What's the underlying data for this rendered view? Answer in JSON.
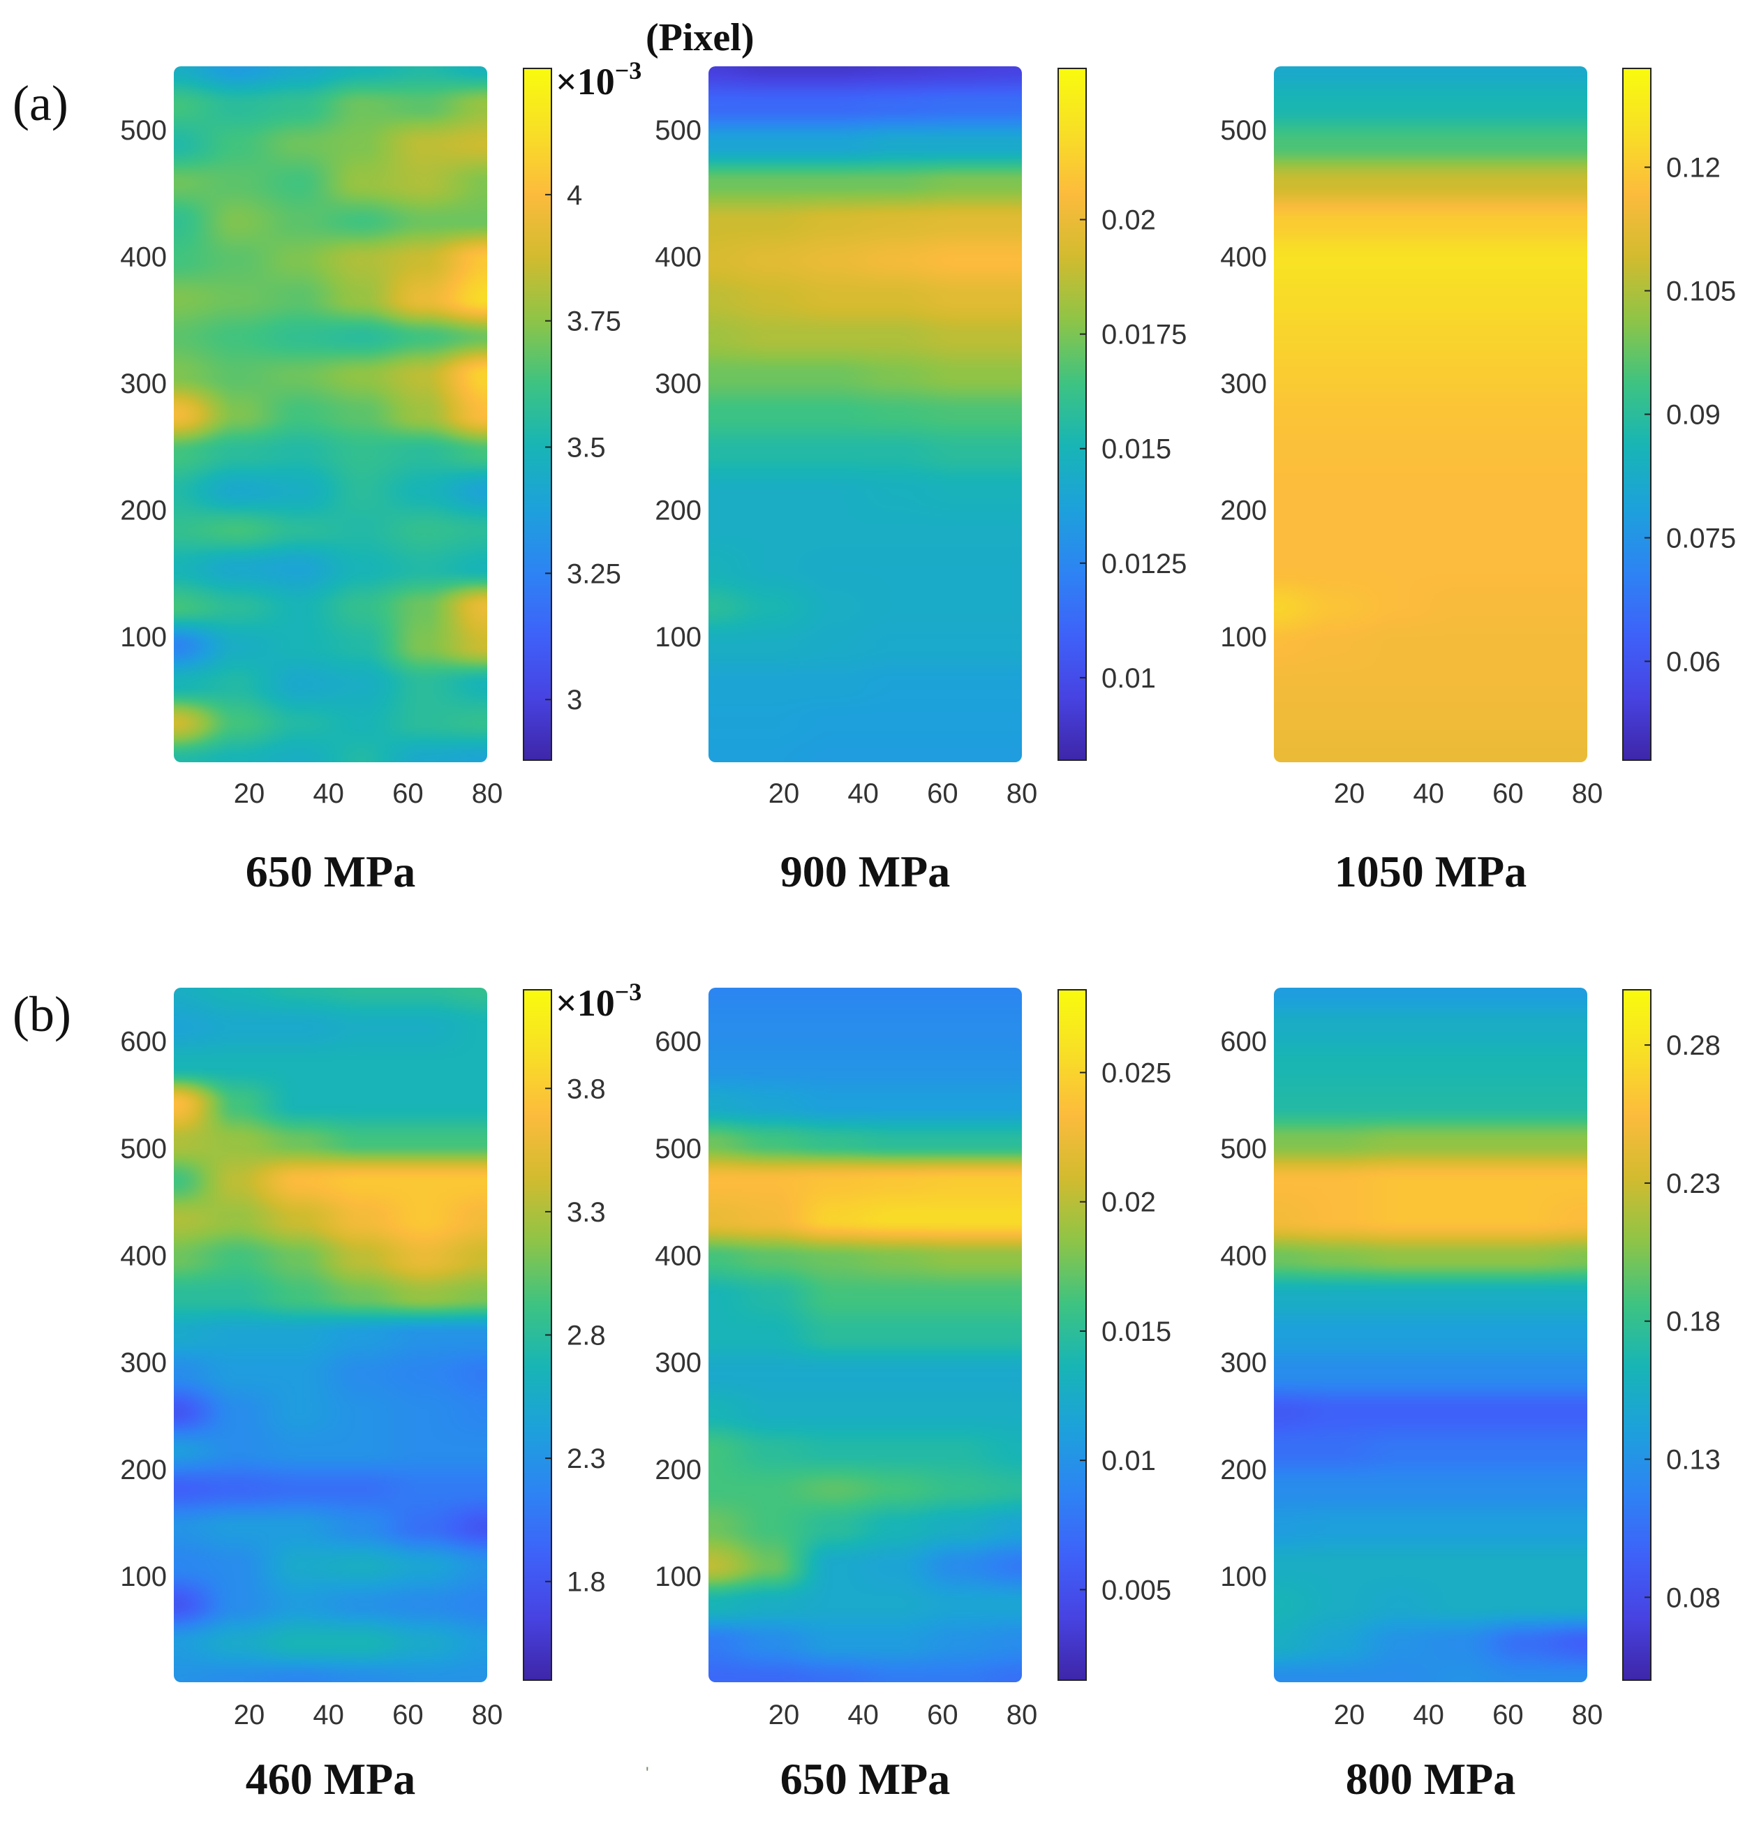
{
  "figure": {
    "unit_label": "(Pixel)",
    "stray_mark": "'"
  },
  "colormap": [
    "#3e26a8",
    "#4743e2",
    "#3e62f9",
    "#2d84f3",
    "#1da1db",
    "#18b5b5",
    "#3ec381",
    "#8ec447",
    "#d2bb2f",
    "#fcbb3d",
    "#f8df26",
    "#f9fb0e"
  ],
  "chart_data": [
    {
      "type": "heatmap",
      "row": "a",
      "panel_tag": "(a)",
      "title": "650 MPa",
      "ylim": [
        1,
        550
      ],
      "yticks": [
        "500",
        "400",
        "300",
        "200",
        "100"
      ],
      "ytick_values": [
        500,
        400,
        300,
        200,
        100
      ],
      "xlim": [
        1,
        80
      ],
      "xticks": [
        "20",
        "40",
        "60",
        "80"
      ],
      "xtick_values": [
        20,
        40,
        60,
        80
      ],
      "clim": [
        0.00288,
        0.00425
      ],
      "cbar_multiplier": "×10",
      "cbar_exponent": "−3",
      "cbar_ticks": [
        "4",
        "3.75",
        "3.5",
        "3.25",
        "3"
      ],
      "cbar_tick_values": [
        0.004,
        0.00375,
        0.0035,
        0.00325,
        0.003
      ],
      "z": [
        [
          0.42,
          0.35,
          0.4,
          0.45,
          0.48,
          0.44
        ],
        [
          0.55,
          0.5,
          0.52,
          0.6,
          0.58,
          0.65
        ],
        [
          0.48,
          0.55,
          0.6,
          0.62,
          0.7,
          0.72
        ],
        [
          0.6,
          0.58,
          0.55,
          0.65,
          0.68,
          0.62
        ],
        [
          0.52,
          0.62,
          0.58,
          0.55,
          0.6,
          0.6
        ],
        [
          0.55,
          0.58,
          0.62,
          0.68,
          0.72,
          0.85
        ],
        [
          0.62,
          0.6,
          0.58,
          0.65,
          0.78,
          0.9
        ],
        [
          0.58,
          0.55,
          0.52,
          0.5,
          0.55,
          0.6
        ],
        [
          0.62,
          0.58,
          0.6,
          0.64,
          0.7,
          0.88
        ],
        [
          0.8,
          0.62,
          0.55,
          0.58,
          0.66,
          0.82
        ],
        [
          0.55,
          0.5,
          0.48,
          0.52,
          0.5,
          0.55
        ],
        [
          0.48,
          0.4,
          0.42,
          0.5,
          0.45,
          0.38
        ],
        [
          0.52,
          0.55,
          0.5,
          0.48,
          0.52,
          0.5
        ],
        [
          0.45,
          0.4,
          0.38,
          0.45,
          0.48,
          0.45
        ],
        [
          0.55,
          0.5,
          0.45,
          0.52,
          0.6,
          0.78
        ],
        [
          0.28,
          0.42,
          0.45,
          0.48,
          0.62,
          0.72
        ],
        [
          0.45,
          0.48,
          0.4,
          0.42,
          0.5,
          0.45
        ],
        [
          0.72,
          0.55,
          0.48,
          0.45,
          0.5,
          0.52
        ],
        [
          0.48,
          0.45,
          0.42,
          0.48,
          0.4,
          0.38
        ]
      ]
    },
    {
      "type": "heatmap",
      "row": "a",
      "title": "900 MPa",
      "ylim": [
        1,
        550
      ],
      "yticks": [
        "500",
        "400",
        "300",
        "200",
        "100"
      ],
      "ytick_values": [
        500,
        400,
        300,
        200,
        100
      ],
      "xlim": [
        1,
        80
      ],
      "xticks": [
        "20",
        "40",
        "60",
        "80"
      ],
      "xtick_values": [
        20,
        40,
        60,
        80
      ],
      "clim": [
        0.0082,
        0.0233
      ],
      "cbar_ticks": [
        "0.02",
        "0.0175",
        "0.015",
        "0.0125",
        "0.01"
      ],
      "cbar_tick_values": [
        0.02,
        0.0175,
        0.015,
        0.0125,
        0.01
      ],
      "z": [
        [
          0.08,
          0.06,
          0.06,
          0.07,
          0.08,
          0.09
        ],
        [
          0.2,
          0.2,
          0.2,
          0.21,
          0.22,
          0.22
        ],
        [
          0.38,
          0.38,
          0.38,
          0.4,
          0.4,
          0.4
        ],
        [
          0.6,
          0.6,
          0.6,
          0.6,
          0.62,
          0.62
        ],
        [
          0.72,
          0.72,
          0.74,
          0.75,
          0.76,
          0.76
        ],
        [
          0.74,
          0.76,
          0.78,
          0.8,
          0.82,
          0.82
        ],
        [
          0.7,
          0.72,
          0.74,
          0.74,
          0.76,
          0.76
        ],
        [
          0.66,
          0.68,
          0.68,
          0.68,
          0.7,
          0.7
        ],
        [
          0.6,
          0.6,
          0.6,
          0.62,
          0.64,
          0.64
        ],
        [
          0.54,
          0.54,
          0.54,
          0.55,
          0.56,
          0.56
        ],
        [
          0.48,
          0.48,
          0.48,
          0.48,
          0.5,
          0.5
        ],
        [
          0.42,
          0.42,
          0.42,
          0.43,
          0.44,
          0.44
        ],
        [
          0.42,
          0.42,
          0.42,
          0.42,
          0.42,
          0.42
        ],
        [
          0.44,
          0.42,
          0.41,
          0.41,
          0.41,
          0.41
        ],
        [
          0.5,
          0.46,
          0.42,
          0.41,
          0.41,
          0.41
        ],
        [
          0.42,
          0.42,
          0.41,
          0.4,
          0.4,
          0.4
        ],
        [
          0.38,
          0.38,
          0.38,
          0.37,
          0.37,
          0.37
        ],
        [
          0.37,
          0.37,
          0.36,
          0.36,
          0.36,
          0.36
        ],
        [
          0.36,
          0.36,
          0.35,
          0.35,
          0.35,
          0.35
        ]
      ]
    },
    {
      "type": "heatmap",
      "row": "a",
      "title": "1050 MPa",
      "ylim": [
        1,
        550
      ],
      "yticks": [
        "500",
        "400",
        "300",
        "200",
        "100"
      ],
      "ytick_values": [
        500,
        400,
        300,
        200,
        100
      ],
      "xlim": [
        1,
        80
      ],
      "xticks": [
        "20",
        "40",
        "60",
        "80"
      ],
      "xtick_values": [
        20,
        40,
        60,
        80
      ],
      "clim": [
        0.048,
        0.132
      ],
      "cbar_ticks": [
        "0.12",
        "0.105",
        "0.09",
        "0.075",
        "0.06"
      ],
      "cbar_tick_values": [
        0.12,
        0.105,
        0.09,
        0.075,
        0.06
      ],
      "z": [
        [
          0.4,
          0.4,
          0.4,
          0.4,
          0.4,
          0.4
        ],
        [
          0.46,
          0.46,
          0.46,
          0.46,
          0.46,
          0.46
        ],
        [
          0.56,
          0.56,
          0.56,
          0.56,
          0.56,
          0.56
        ],
        [
          0.72,
          0.72,
          0.72,
          0.72,
          0.72,
          0.72
        ],
        [
          0.86,
          0.86,
          0.86,
          0.86,
          0.86,
          0.86
        ],
        [
          0.92,
          0.92,
          0.92,
          0.92,
          0.92,
          0.92
        ],
        [
          0.9,
          0.9,
          0.9,
          0.9,
          0.9,
          0.9
        ],
        [
          0.88,
          0.88,
          0.88,
          0.88,
          0.88,
          0.88
        ],
        [
          0.86,
          0.86,
          0.86,
          0.86,
          0.86,
          0.86
        ],
        [
          0.84,
          0.84,
          0.84,
          0.84,
          0.84,
          0.84
        ],
        [
          0.83,
          0.83,
          0.83,
          0.83,
          0.83,
          0.83
        ],
        [
          0.82,
          0.82,
          0.82,
          0.82,
          0.82,
          0.82
        ],
        [
          0.82,
          0.82,
          0.82,
          0.82,
          0.82,
          0.82
        ],
        [
          0.82,
          0.82,
          0.82,
          0.82,
          0.82,
          0.82
        ],
        [
          0.88,
          0.84,
          0.82,
          0.81,
          0.81,
          0.81
        ],
        [
          0.82,
          0.81,
          0.8,
          0.8,
          0.8,
          0.8
        ],
        [
          0.8,
          0.8,
          0.8,
          0.8,
          0.8,
          0.8
        ],
        [
          0.79,
          0.79,
          0.79,
          0.79,
          0.79,
          0.79
        ],
        [
          0.78,
          0.78,
          0.78,
          0.78,
          0.78,
          0.78
        ]
      ]
    },
    {
      "type": "heatmap",
      "row": "b",
      "panel_tag": "(b)",
      "title": "460 MPa",
      "ylim": [
        1,
        650
      ],
      "yticks": [
        "600",
        "500",
        "400",
        "300",
        "200",
        "100"
      ],
      "ytick_values": [
        600,
        500,
        400,
        300,
        200,
        100
      ],
      "xlim": [
        1,
        80
      ],
      "xticks": [
        "20",
        "40",
        "60",
        "80"
      ],
      "xtick_values": [
        20,
        40,
        60,
        80
      ],
      "clim": [
        0.0014,
        0.0042
      ],
      "cbar_multiplier": "×10",
      "cbar_exponent": "−3",
      "cbar_ticks": [
        "3.8",
        "3.3",
        "2.8",
        "2.3",
        "1.8"
      ],
      "cbar_tick_values": [
        0.0038,
        0.0033,
        0.0028,
        0.0023,
        0.0018
      ],
      "z": [
        [
          0.42,
          0.45,
          0.48,
          0.5,
          0.5,
          0.52
        ],
        [
          0.38,
          0.4,
          0.4,
          0.42,
          0.42,
          0.45
        ],
        [
          0.45,
          0.45,
          0.45,
          0.45,
          0.45,
          0.45
        ],
        [
          0.82,
          0.55,
          0.45,
          0.45,
          0.45,
          0.45
        ],
        [
          0.68,
          0.65,
          0.6,
          0.55,
          0.55,
          0.55
        ],
        [
          0.55,
          0.7,
          0.82,
          0.85,
          0.85,
          0.85
        ],
        [
          0.68,
          0.65,
          0.72,
          0.8,
          0.85,
          0.8
        ],
        [
          0.6,
          0.55,
          0.6,
          0.7,
          0.78,
          0.72
        ],
        [
          0.5,
          0.5,
          0.55,
          0.6,
          0.65,
          0.62
        ],
        [
          0.4,
          0.38,
          0.38,
          0.35,
          0.32,
          0.32
        ],
        [
          0.3,
          0.35,
          0.35,
          0.3,
          0.28,
          0.25
        ],
        [
          0.15,
          0.3,
          0.35,
          0.32,
          0.3,
          0.28
        ],
        [
          0.35,
          0.3,
          0.32,
          0.32,
          0.3,
          0.3
        ],
        [
          0.18,
          0.2,
          0.22,
          0.22,
          0.25,
          0.25
        ],
        [
          0.32,
          0.35,
          0.35,
          0.3,
          0.22,
          0.15
        ],
        [
          0.28,
          0.3,
          0.4,
          0.42,
          0.38,
          0.32
        ],
        [
          0.15,
          0.3,
          0.35,
          0.32,
          0.3,
          0.28
        ],
        [
          0.35,
          0.4,
          0.45,
          0.45,
          0.4,
          0.35
        ],
        [
          0.32,
          0.3,
          0.28,
          0.3,
          0.32,
          0.32
        ]
      ]
    },
    {
      "type": "heatmap",
      "row": "b",
      "title": "650 MPa",
      "ylim": [
        1,
        650
      ],
      "yticks": [
        "600",
        "500",
        "400",
        "300",
        "200",
        "100"
      ],
      "ytick_values": [
        600,
        500,
        400,
        300,
        200,
        100
      ],
      "xlim": [
        1,
        80
      ],
      "xticks": [
        "20",
        "40",
        "60",
        "80"
      ],
      "xtick_values": [
        20,
        40,
        60,
        80
      ],
      "clim": [
        0.0015,
        0.0282
      ],
      "cbar_ticks": [
        "0.025",
        "0.02",
        "0.015",
        "0.01",
        "0.005"
      ],
      "cbar_tick_values": [
        0.025,
        0.02,
        0.015,
        0.01,
        0.005
      ],
      "z": [
        [
          0.28,
          0.28,
          0.28,
          0.28,
          0.28,
          0.28
        ],
        [
          0.3,
          0.3,
          0.3,
          0.3,
          0.3,
          0.3
        ],
        [
          0.32,
          0.32,
          0.32,
          0.32,
          0.32,
          0.32
        ],
        [
          0.4,
          0.38,
          0.36,
          0.36,
          0.36,
          0.36
        ],
        [
          0.6,
          0.55,
          0.52,
          0.5,
          0.5,
          0.5
        ],
        [
          0.82,
          0.82,
          0.84,
          0.85,
          0.86,
          0.86
        ],
        [
          0.78,
          0.8,
          0.88,
          0.9,
          0.9,
          0.9
        ],
        [
          0.55,
          0.58,
          0.6,
          0.62,
          0.64,
          0.64
        ],
        [
          0.45,
          0.48,
          0.55,
          0.55,
          0.55,
          0.55
        ],
        [
          0.45,
          0.45,
          0.5,
          0.5,
          0.5,
          0.5
        ],
        [
          0.4,
          0.4,
          0.4,
          0.4,
          0.4,
          0.4
        ],
        [
          0.45,
          0.42,
          0.42,
          0.42,
          0.42,
          0.42
        ],
        [
          0.55,
          0.5,
          0.48,
          0.48,
          0.48,
          0.45
        ],
        [
          0.55,
          0.55,
          0.58,
          0.55,
          0.52,
          0.5
        ],
        [
          0.6,
          0.55,
          0.5,
          0.45,
          0.42,
          0.38
        ],
        [
          0.7,
          0.6,
          0.4,
          0.38,
          0.3,
          0.25
        ],
        [
          0.45,
          0.42,
          0.4,
          0.4,
          0.38,
          0.38
        ],
        [
          0.25,
          0.3,
          0.35,
          0.35,
          0.32,
          0.3
        ],
        [
          0.2,
          0.2,
          0.22,
          0.25,
          0.25,
          0.22
        ]
      ]
    },
    {
      "type": "heatmap",
      "row": "b",
      "title": "800 MPa",
      "ylim": [
        1,
        650
      ],
      "yticks": [
        "600",
        "500",
        "400",
        "300",
        "200",
        "100"
      ],
      "ytick_values": [
        600,
        500,
        400,
        300,
        200,
        100
      ],
      "xlim": [
        1,
        80
      ],
      "xticks": [
        "20",
        "40",
        "60",
        "80"
      ],
      "xtick_values": [
        20,
        40,
        60,
        80
      ],
      "clim": [
        0.05,
        0.3
      ],
      "cbar_ticks": [
        "0.28",
        "0.23",
        "0.18",
        "0.13",
        "0.08"
      ],
      "cbar_tick_values": [
        0.28,
        0.23,
        0.18,
        0.13,
        0.08
      ],
      "z": [
        [
          0.35,
          0.35,
          0.35,
          0.35,
          0.35,
          0.35
        ],
        [
          0.42,
          0.42,
          0.42,
          0.42,
          0.42,
          0.42
        ],
        [
          0.46,
          0.46,
          0.46,
          0.46,
          0.46,
          0.46
        ],
        [
          0.48,
          0.48,
          0.48,
          0.48,
          0.48,
          0.48
        ],
        [
          0.62,
          0.62,
          0.64,
          0.64,
          0.64,
          0.64
        ],
        [
          0.82,
          0.82,
          0.84,
          0.84,
          0.84,
          0.84
        ],
        [
          0.8,
          0.82,
          0.84,
          0.84,
          0.84,
          0.82
        ],
        [
          0.6,
          0.62,
          0.64,
          0.64,
          0.64,
          0.62
        ],
        [
          0.42,
          0.42,
          0.42,
          0.42,
          0.42,
          0.42
        ],
        [
          0.36,
          0.36,
          0.36,
          0.36,
          0.36,
          0.36
        ],
        [
          0.3,
          0.3,
          0.3,
          0.3,
          0.3,
          0.3
        ],
        [
          0.16,
          0.18,
          0.18,
          0.18,
          0.18,
          0.18
        ],
        [
          0.22,
          0.22,
          0.24,
          0.24,
          0.24,
          0.24
        ],
        [
          0.3,
          0.3,
          0.3,
          0.3,
          0.3,
          0.3
        ],
        [
          0.35,
          0.36,
          0.36,
          0.36,
          0.36,
          0.36
        ],
        [
          0.42,
          0.42,
          0.42,
          0.42,
          0.42,
          0.42
        ],
        [
          0.45,
          0.42,
          0.4,
          0.42,
          0.42,
          0.42
        ],
        [
          0.42,
          0.38,
          0.32,
          0.3,
          0.22,
          0.18
        ],
        [
          0.3,
          0.3,
          0.3,
          0.32,
          0.3,
          0.3
        ]
      ]
    }
  ]
}
